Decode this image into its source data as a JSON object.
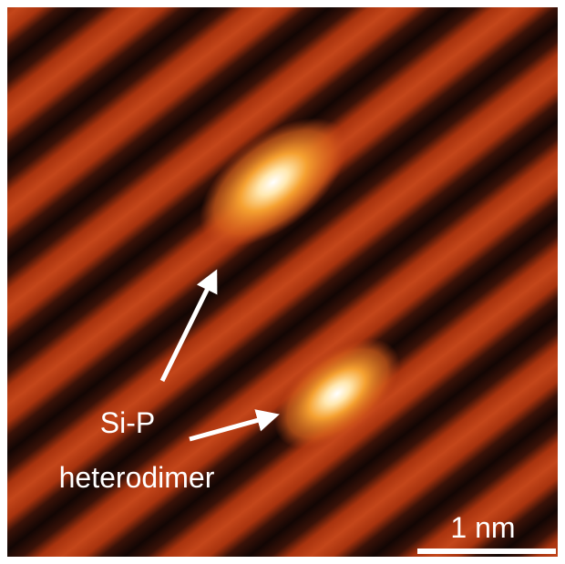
{
  "labels": {
    "line1": "Si-P",
    "line2": "heterodimer"
  },
  "scale_bar": {
    "label": "1 nm"
  }
}
